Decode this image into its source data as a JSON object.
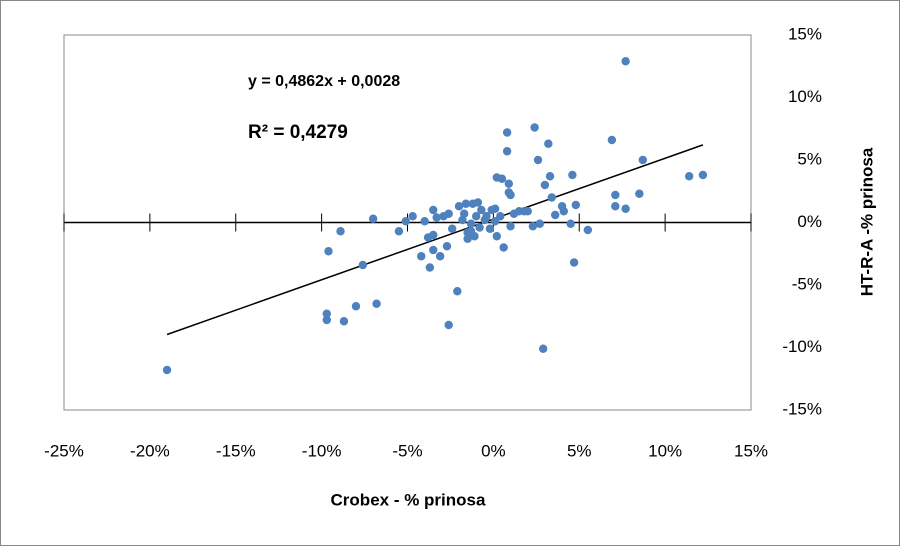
{
  "chart_data": {
    "type": "scatter",
    "x_label": "Crobex - % prinosa",
    "y_label": "HT-R-A -% prinosa",
    "equation": "y = 0,4862x + 0,0028",
    "r_squared": "R² = 0,4279",
    "color": "#4f81bd",
    "trendline_color": "#000000",
    "xlim": [
      -25,
      15
    ],
    "ylim": [
      -15,
      15
    ],
    "xticks": [
      {
        "value": -25,
        "label": "-25%"
      },
      {
        "value": -20,
        "label": "-20%"
      },
      {
        "value": -15,
        "label": "-15%"
      },
      {
        "value": -10,
        "label": "-10%"
      },
      {
        "value": -5,
        "label": "-5%"
      },
      {
        "value": 0,
        "label": "0%"
      },
      {
        "value": 5,
        "label": "5%"
      },
      {
        "value": 10,
        "label": "10%"
      },
      {
        "value": 15,
        "label": "15%"
      }
    ],
    "yticks": [
      {
        "value": -15,
        "label": "-15%"
      },
      {
        "value": -10,
        "label": "-10%"
      },
      {
        "value": -5,
        "label": "-5%"
      },
      {
        "value": 0,
        "label": "0%"
      },
      {
        "value": 5,
        "label": "5%"
      },
      {
        "value": 10,
        "label": "10%"
      },
      {
        "value": 15,
        "label": "15%"
      }
    ],
    "x": [
      -19.0,
      -9.7,
      -9.7,
      -8.7,
      -8.0,
      -6.8,
      -9.6,
      -8.9,
      -7.6,
      -7.0,
      -5.5,
      -5.1,
      -4.7,
      -4.2,
      -4.0,
      -3.8,
      -3.7,
      -3.5,
      -3.5,
      -3.5,
      -3.3,
      -3.1,
      -2.9,
      -2.7,
      -2.6,
      -2.6,
      -2.4,
      -2.1,
      -2.0,
      -1.8,
      -1.7,
      -1.6,
      -1.5,
      -1.5,
      -1.3,
      -1.3,
      -1.2,
      -1.1,
      -1.0,
      -0.9,
      -0.8,
      -0.7,
      -0.5,
      -0.4,
      -0.2,
      -0.1,
      0.1,
      0.1,
      0.2,
      0.2,
      0.4,
      0.6,
      0.5,
      0.8,
      0.8,
      0.9,
      0.9,
      1.0,
      1.0,
      1.2,
      1.5,
      1.8,
      2.0,
      2.3,
      2.4,
      2.6,
      2.7,
      2.9,
      3.0,
      3.2,
      3.3,
      3.4,
      3.6,
      4.0,
      4.1,
      4.5,
      4.6,
      4.7,
      4.8,
      5.5,
      6.9,
      7.1,
      7.1,
      7.7,
      7.7,
      8.5,
      8.7,
      11.4,
      12.2
    ],
    "y": [
      -11.8,
      -7.3,
      -7.8,
      -7.9,
      -6.7,
      -6.5,
      -2.3,
      -0.7,
      -3.4,
      0.3,
      -0.7,
      0.1,
      0.5,
      -2.7,
      0.1,
      -1.2,
      -3.6,
      -1.0,
      1.0,
      -2.2,
      0.4,
      -2.7,
      0.5,
      -1.9,
      0.7,
      -8.2,
      -0.5,
      -5.5,
      1.3,
      0.2,
      0.7,
      1.5,
      -0.8,
      -1.3,
      -0.1,
      -0.7,
      1.5,
      -1.1,
      0.5,
      1.6,
      -0.4,
      1.0,
      0.2,
      0.5,
      -0.5,
      1.0,
      1.1,
      0.1,
      3.6,
      -1.1,
      0.5,
      -2.0,
      3.5,
      5.7,
      7.2,
      2.4,
      3.1,
      -0.3,
      2.2,
      0.7,
      0.9,
      0.9,
      0.9,
      -0.3,
      7.6,
      5.0,
      -0.1,
      -10.1,
      3.0,
      6.3,
      3.7,
      2.0,
      0.6,
      1.3,
      0.9,
      -0.1,
      3.8,
      -3.2,
      1.4,
      -0.6,
      6.6,
      2.2,
      1.3,
      12.9,
      1.1,
      2.3,
      5.0,
      3.7,
      3.8
    ],
    "trendline": {
      "x": [
        -19.0,
        12.2
      ],
      "y": [
        -8.96,
        6.21
      ]
    }
  }
}
